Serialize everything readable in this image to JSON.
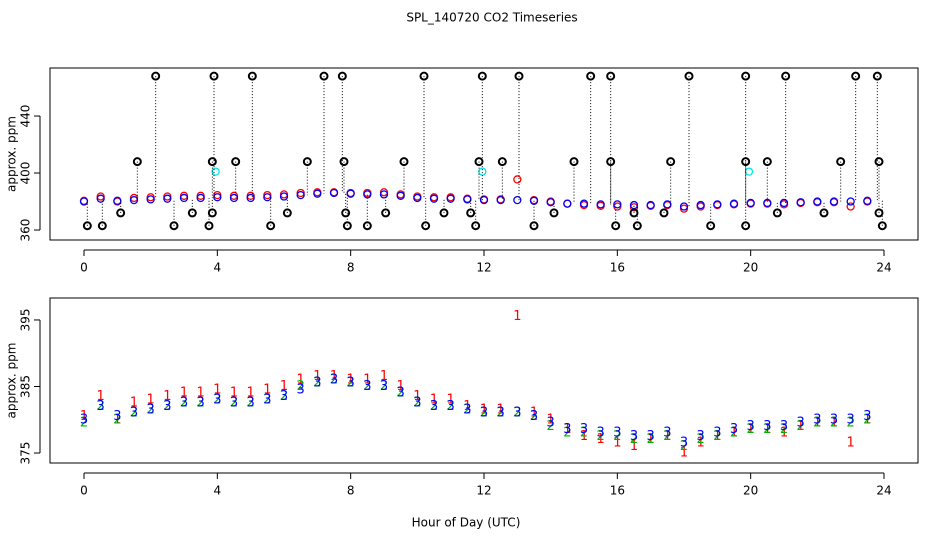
{
  "chart_data": [
    {
      "type": "scatter",
      "title": "SPL_140720  CO2 Timeseries",
      "ylabel": "approx. ppm",
      "xlim": [
        -1.02,
        25.02
      ],
      "xticks": [
        0,
        4,
        8,
        12,
        16,
        20,
        24
      ],
      "ylim": [
        353,
        473.7
      ],
      "yticks": [
        360,
        400,
        440
      ],
      "series": [
        {
          "color": "#ff0000",
          "x": [
            0,
            0.5,
            1,
            1.5,
            2,
            2.5,
            3,
            3.5,
            4,
            4.5,
            5,
            5.5,
            6,
            6.5,
            7,
            7.5,
            8,
            8.5,
            9,
            9.5,
            10,
            10.5,
            11,
            11.5,
            12,
            12.5,
            13,
            13.5,
            14,
            14.5,
            15,
            15.5,
            16,
            16.5,
            17,
            17.5,
            18,
            18.5,
            19,
            19.5,
            20,
            20.5,
            21,
            21.5,
            22,
            22.5,
            23,
            23.5
          ],
          "values": [
            380.5,
            383.5,
            380,
            382.5,
            383,
            383.5,
            384,
            384,
            384.5,
            384,
            384,
            384.5,
            385,
            386,
            386.5,
            386.5,
            386,
            386,
            386.5,
            385,
            383.5,
            383,
            383,
            382,
            381.5,
            381.5,
            395.5,
            381,
            380,
            378.5,
            377.5,
            377,
            376.5,
            376,
            377,
            377.5,
            375,
            376.5,
            377.5,
            378,
            378.5,
            378.5,
            378,
            379,
            379.5,
            379.5,
            376.5,
            380
          ]
        },
        {
          "color": "#0000ff",
          "x": [
            0,
            0.5,
            1,
            1.5,
            2,
            2.5,
            3,
            3.5,
            4,
            4.5,
            5,
            5.5,
            6,
            6.5,
            7,
            7.5,
            8,
            8.5,
            9,
            9.5,
            10,
            10.5,
            11,
            11.5,
            12,
            12.5,
            13,
            13.5,
            14,
            14.5,
            15,
            15.5,
            16,
            16.5,
            17,
            17.5,
            18,
            18.5,
            19,
            19.5,
            20,
            20.5,
            21,
            21.5,
            22,
            22.5,
            23,
            23.5
          ],
          "values": [
            380,
            382,
            380.5,
            381,
            381.5,
            382,
            382.5,
            382.5,
            383,
            382.5,
            382.5,
            383,
            383.5,
            384.5,
            385.5,
            386,
            385.5,
            385,
            385,
            384,
            382.5,
            382,
            382,
            381.5,
            381,
            381,
            381,
            380.5,
            379.5,
            378.5,
            378.5,
            378,
            378,
            377.5,
            377.5,
            378,
            376.5,
            377.5,
            378,
            378.5,
            379,
            379,
            379,
            379.5,
            380,
            380,
            380,
            380.5
          ]
        },
        {
          "color": "#00e5e5",
          "x": [
            3.95,
            11.95,
            19.95
          ],
          "values": [
            401,
            401,
            401
          ]
        },
        {
          "color": "#000000",
          "dotted": true,
          "x": [
            2.15,
            3.9,
            5.05,
            7.2,
            7.75,
            10.2,
            11.95,
            13.05,
            15.2,
            15.8,
            18.15,
            19.85,
            21.05,
            23.15,
            23.8,
            1.6,
            3.85,
            4.55,
            6.7,
            7.8,
            9.6,
            11.85,
            12.55,
            14.7,
            15.8,
            17.6,
            19.85,
            20.5,
            22.7,
            23.85,
            1.1,
            3.25,
            3.85,
            6.1,
            7.85,
            9.05,
            10.8,
            11.6,
            14.1,
            16.5,
            17.4,
            20.8,
            22.2,
            23.85,
            0.1,
            0.55,
            2.7,
            3.75,
            5.6,
            7.9,
            8.5,
            10.25,
            11.75,
            13.5,
            15.95,
            16.6,
            18.8,
            19.85,
            23.95
          ],
          "values": [
            468,
            468,
            468,
            468,
            468,
            468,
            468,
            468,
            468,
            468,
            468,
            468,
            468,
            468,
            468,
            408,
            408,
            408,
            408,
            408,
            408,
            408,
            408,
            408,
            408,
            408,
            408,
            408,
            408,
            408,
            372,
            372,
            372,
            372,
            372,
            372,
            372,
            372,
            372,
            372,
            372,
            372,
            372,
            372,
            363,
            363,
            363,
            363,
            363,
            363,
            363,
            363,
            363,
            363,
            363,
            363,
            363,
            363,
            363
          ]
        }
      ]
    },
    {
      "type": "scatter",
      "ylabel": "approx. ppm",
      "xlabel": "Hour of Day (UTC)",
      "xlim": [
        -1.02,
        25.02
      ],
      "xticks": [
        0,
        4,
        8,
        12,
        16,
        20,
        24
      ],
      "ylim": [
        373.5,
        398.3
      ],
      "yticks": [
        375,
        385,
        395
      ],
      "series": [
        {
          "marker": "1",
          "color": "#ff0000",
          "x": [
            0,
            0.5,
            1,
            1.5,
            2,
            2.5,
            3,
            3.5,
            4,
            4.5,
            5,
            5.5,
            6,
            6.5,
            7,
            7.5,
            8,
            8.5,
            9,
            9.5,
            10,
            10.5,
            11,
            11.5,
            12,
            12.5,
            13,
            13.5,
            14,
            14.5,
            15,
            15.5,
            16,
            16.5,
            17,
            17.5,
            18,
            18.5,
            19,
            19.5,
            20,
            20.5,
            21,
            21.5,
            22,
            22.5,
            23,
            23.5
          ],
          "values": [
            380.5,
            383.5,
            380,
            382.5,
            383,
            383.5,
            384,
            384,
            384.5,
            384,
            384,
            384.5,
            385,
            386,
            386.5,
            386.5,
            386,
            386,
            386.5,
            385,
            383.5,
            383,
            383,
            382,
            381.5,
            381.5,
            395.5,
            381,
            380,
            378.5,
            377.5,
            377,
            376.5,
            376,
            377,
            377.5,
            375,
            376.5,
            377.5,
            378,
            378.5,
            378.5,
            378,
            379,
            379.5,
            379.5,
            376.5,
            380
          ]
        },
        {
          "marker": "2",
          "color": "#00b000",
          "x": [
            0,
            0.5,
            1,
            1.5,
            2,
            2.5,
            3,
            3.5,
            4,
            4.5,
            5,
            5.5,
            6,
            6.5,
            7,
            7.5,
            8,
            8.5,
            9,
            9.5,
            10,
            10.5,
            11,
            11.5,
            12,
            12.5,
            13,
            13.5,
            14,
            14.5,
            15,
            15.5,
            16,
            16.5,
            17,
            17.5,
            18,
            18.5,
            19,
            19.5,
            20,
            20.5,
            21,
            21.5,
            22,
            22.5,
            23,
            23.5
          ],
          "values": [
            379.5,
            382,
            380,
            381,
            381.5,
            382,
            382.5,
            382.5,
            383,
            382.5,
            382.5,
            383,
            383.5,
            385,
            385.5,
            386,
            385.5,
            385,
            385,
            384,
            382.5,
            382,
            382,
            381.5,
            381,
            381,
            381,
            380.5,
            379,
            378,
            378,
            377.5,
            377.5,
            377,
            377,
            377.5,
            376,
            377,
            377.5,
            378,
            378.5,
            378.5,
            378.5,
            379,
            379.5,
            379.5,
            379.5,
            380
          ]
        },
        {
          "marker": "3",
          "color": "#0000ff",
          "x": [
            0,
            0.5,
            1,
            1.5,
            2,
            2.5,
            3,
            3.5,
            4,
            4.5,
            5,
            5.5,
            6,
            6.5,
            7,
            7.5,
            8,
            8.5,
            9,
            9.5,
            10,
            10.5,
            11,
            11.5,
            12,
            12.5,
            13,
            13.5,
            14,
            14.5,
            15,
            15.5,
            16,
            16.5,
            17,
            17.5,
            18,
            18.5,
            19,
            19.5,
            20,
            20.5,
            21,
            21.5,
            22,
            22.5,
            23,
            23.5
          ],
          "values": [
            380,
            382,
            380.5,
            381,
            381.5,
            382,
            382.5,
            382.5,
            383,
            382.5,
            382.5,
            383,
            383.5,
            384.5,
            385.5,
            386,
            385.5,
            385,
            385,
            384,
            382.5,
            382,
            382,
            381.5,
            381,
            381,
            381,
            380.5,
            379.5,
            378.5,
            378.5,
            378,
            378,
            377.5,
            377.5,
            378,
            376.5,
            377.5,
            378,
            378.5,
            379,
            379,
            379,
            379.5,
            380,
            380,
            380,
            380.5
          ]
        }
      ]
    }
  ]
}
